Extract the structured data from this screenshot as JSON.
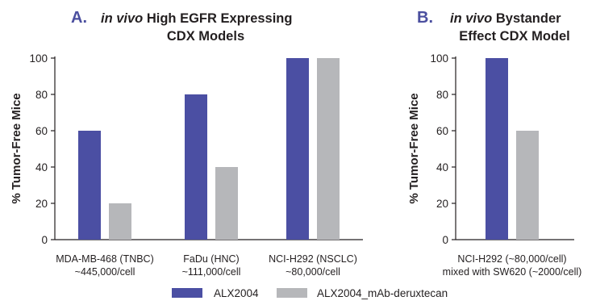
{
  "colors": {
    "primary": "#4b4fa3",
    "secondary": "#b6b7ba",
    "accent": "#4b4f9f",
    "axis": "#231f20"
  },
  "legend": [
    {
      "label": "ALX2004",
      "color": "#4b4fa3"
    },
    {
      "label": "ALX2004_mAb-deruxtecan",
      "color": "#b6b7ba"
    }
  ],
  "chart_data": [
    {
      "type": "bar",
      "panel_letter": "A.",
      "title_italic": "in vivo",
      "title_rest": " High EGFR Expressing",
      "title_line2": "CDX Models",
      "ylabel": "% Tumor-Free Mice",
      "xlabel": "",
      "ylim": [
        0,
        100
      ],
      "yticks": [
        0,
        20,
        40,
        60,
        80,
        100
      ],
      "categories": [
        [
          "MDA-MB-468 (TNBC)",
          "~445,000/cell"
        ],
        [
          "FaDu (HNC)",
          "~111,000/cell"
        ],
        [
          "NCI-H292 (NSCLC)",
          "~80,000/cell"
        ]
      ],
      "series": [
        {
          "name": "ALX2004",
          "values": [
            60,
            80,
            100
          ]
        },
        {
          "name": "ALX2004_mAb-deruxtecan",
          "values": [
            20,
            40,
            100
          ]
        }
      ],
      "grid": false
    },
    {
      "type": "bar",
      "panel_letter": "B.",
      "title_italic": "in vivo",
      "title_rest": " Bystander",
      "title_line2": "Effect CDX Model",
      "ylabel": "% Tumor-Free Mice",
      "xlabel": "",
      "ylim": [
        0,
        100
      ],
      "yticks": [
        0,
        20,
        40,
        60,
        80,
        100
      ],
      "categories": [
        [
          "NCI-H292 (~80,000/cell)",
          "mixed with SW620 (~2000/cell)"
        ]
      ],
      "series": [
        {
          "name": "ALX2004",
          "values": [
            100
          ]
        },
        {
          "name": "ALX2004_mAb-deruxtecan",
          "values": [
            60
          ]
        }
      ],
      "grid": false
    }
  ]
}
